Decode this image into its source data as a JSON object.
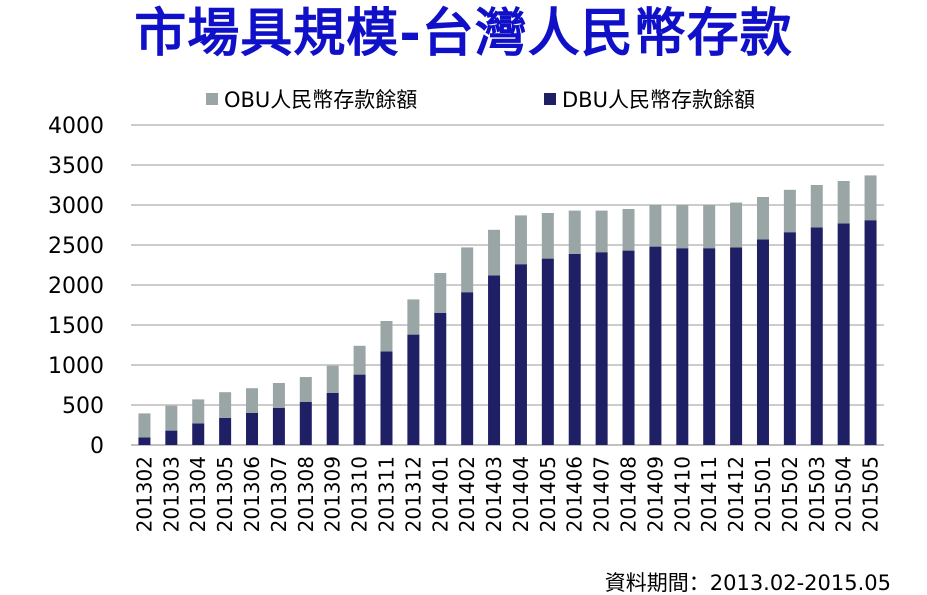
{
  "title": "市場具規模-台灣人民幣存款",
  "note": "資料期間：2013.02-2015.05",
  "colors": {
    "obu": "#9aa5a6",
    "dbu": "#1f1f66",
    "title": "#1010c8",
    "grid": "#9a9a9a"
  },
  "chart_data": {
    "type": "bar",
    "stacked": true,
    "title": "市場具規模-台灣人民幣存款",
    "xlabel": "",
    "ylabel": "",
    "ylim": [
      0,
      4000
    ],
    "yticks": [
      0,
      500,
      1000,
      1500,
      2000,
      2500,
      3000,
      3500,
      4000
    ],
    "grid": true,
    "legend_position": "top",
    "categories": [
      "201302",
      "201303",
      "201304",
      "201305",
      "201306",
      "201307",
      "201308",
      "201309",
      "201310",
      "201311",
      "201312",
      "201401",
      "201402",
      "201403",
      "201404",
      "201405",
      "201406",
      "201407",
      "201408",
      "201409",
      "201410",
      "201411",
      "201412",
      "201501",
      "201502",
      "201503",
      "201504",
      "201505"
    ],
    "series": [
      {
        "name": "DBU人民幣存款餘額",
        "color": "#1f1f66",
        "values": [
          95,
          180,
          270,
          340,
          400,
          465,
          540,
          650,
          880,
          1170,
          1380,
          1650,
          1910,
          2120,
          2260,
          2330,
          2390,
          2410,
          2430,
          2480,
          2460,
          2460,
          2470,
          2570,
          2660,
          2720,
          2770,
          2810
        ]
      },
      {
        "name": "OBU人民幣存款餘額",
        "color": "#9aa5a6",
        "values": [
          300,
          310,
          300,
          320,
          310,
          310,
          310,
          340,
          360,
          380,
          440,
          500,
          560,
          570,
          610,
          570,
          540,
          520,
          520,
          520,
          540,
          540,
          560,
          530,
          530,
          530,
          530,
          560
        ]
      }
    ]
  }
}
